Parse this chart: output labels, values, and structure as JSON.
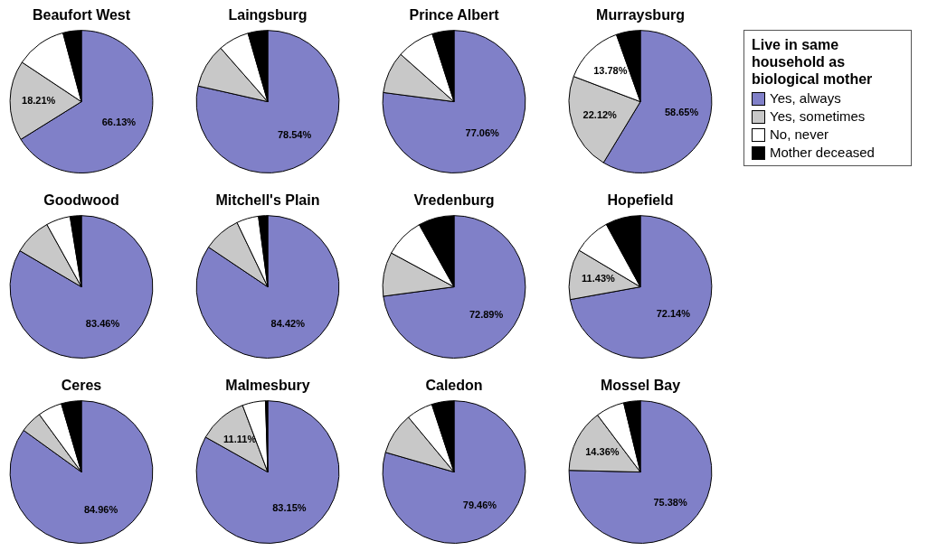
{
  "chart_data": [
    {
      "type": "pie",
      "title": "Beaufort West",
      "categories": [
        "Yes, always",
        "Yes, sometimes",
        "No, never",
        "Mother deceased"
      ],
      "values": [
        66.13,
        18.21,
        11.5,
        4.16
      ],
      "colors": [
        "#8080c8",
        "#c8c8c8",
        "#ffffff",
        "#000000"
      ],
      "value_labels": [
        "66.13%",
        "18.21%",
        null,
        null
      ],
      "legend": "right",
      "legend_title": "Live in same household as biological mother"
    },
    {
      "type": "pie",
      "title": "Laingsburg",
      "categories": [
        null,
        null,
        null,
        null
      ],
      "values": [
        78.54,
        10,
        7,
        4.46
      ],
      "colors": [
        "#8080c8",
        "#c8c8c8",
        "#ffffff",
        "#000000"
      ],
      "value_labels": [
        "78.54%",
        null,
        null,
        null
      ]
    },
    {
      "type": "pie",
      "title": "Prince Albert",
      "categories": [
        null,
        null,
        null,
        null
      ],
      "values": [
        77.06,
        9.5,
        8.5,
        4.94
      ],
      "colors": [
        "#8080c8",
        "#c8c8c8",
        "#ffffff",
        "#000000"
      ],
      "value_labels": [
        "77.06%",
        null,
        null,
        null
      ]
    },
    {
      "type": "pie",
      "title": "Murraysburg",
      "categories": [
        null,
        null,
        null,
        null
      ],
      "values": [
        58.65,
        22.12,
        13.78,
        5.45
      ],
      "colors": [
        "#8080c8",
        "#c8c8c8",
        "#ffffff",
        "#000000"
      ],
      "value_labels": [
        "58.65%",
        "22.12%",
        "13.78%",
        null
      ]
    },
    {
      "type": "pie",
      "title": "Goodwood",
      "categories": [
        null,
        null,
        null,
        null
      ],
      "values": [
        83.46,
        8.5,
        5.5,
        2.54
      ],
      "colors": [
        "#8080c8",
        "#c8c8c8",
        "#ffffff",
        "#000000"
      ],
      "value_labels": [
        "83.46%",
        null,
        null,
        null
      ]
    },
    {
      "type": "pie",
      "title": "Mitchell's Plain",
      "categories": [
        null,
        null,
        null,
        null
      ],
      "values": [
        84.42,
        8.5,
        5,
        2.08
      ],
      "colors": [
        "#8080c8",
        "#c8c8c8",
        "#ffffff",
        "#000000"
      ],
      "value_labels": [
        "84.42%",
        null,
        null,
        null
      ]
    },
    {
      "type": "pie",
      "title": "Vredenburg",
      "categories": [
        null,
        null,
        null,
        null
      ],
      "values": [
        72.89,
        10,
        9,
        8.11
      ],
      "colors": [
        "#8080c8",
        "#c8c8c8",
        "#ffffff",
        "#000000"
      ],
      "value_labels": [
        "72.89%",
        null,
        null,
        null
      ]
    },
    {
      "type": "pie",
      "title": "Hopefield",
      "categories": [
        null,
        null,
        null,
        null
      ],
      "values": [
        72.14,
        11.43,
        8.5,
        7.93
      ],
      "colors": [
        "#8080c8",
        "#c8c8c8",
        "#ffffff",
        "#000000"
      ],
      "value_labels": [
        "72.14%",
        "11.43%",
        null,
        null
      ]
    },
    {
      "type": "pie",
      "title": "Ceres",
      "categories": [
        null,
        null,
        null,
        null
      ],
      "values": [
        84.96,
        5,
        5.5,
        4.54
      ],
      "colors": [
        "#8080c8",
        "#c8c8c8",
        "#ffffff",
        "#000000"
      ],
      "value_labels": [
        "84.96%",
        null,
        null,
        null
      ]
    },
    {
      "type": "pie",
      "title": "Malmesbury",
      "categories": [
        null,
        null,
        null,
        null
      ],
      "values": [
        83.15,
        11.11,
        5.24,
        0.5
      ],
      "colors": [
        "#8080c8",
        "#c8c8c8",
        "#ffffff",
        "#000000"
      ],
      "value_labels": [
        "83.15%",
        "11.11%",
        null,
        null
      ]
    },
    {
      "type": "pie",
      "title": "Caledon",
      "categories": [
        null,
        null,
        null,
        null
      ],
      "values": [
        79.46,
        9.5,
        6,
        5.04
      ],
      "colors": [
        "#8080c8",
        "#c8c8c8",
        "#ffffff",
        "#000000"
      ],
      "value_labels": [
        "79.46%",
        null,
        null,
        null
      ]
    },
    {
      "type": "pie",
      "title": "Mossel Bay",
      "categories": [
        null,
        null,
        null,
        null
      ],
      "values": [
        75.38,
        14.36,
        6.5,
        3.76
      ],
      "colors": [
        "#8080c8",
        "#c8c8c8",
        "#ffffff",
        "#000000"
      ],
      "value_labels": [
        "75.38%",
        "14.36%",
        null,
        null
      ]
    }
  ]
}
